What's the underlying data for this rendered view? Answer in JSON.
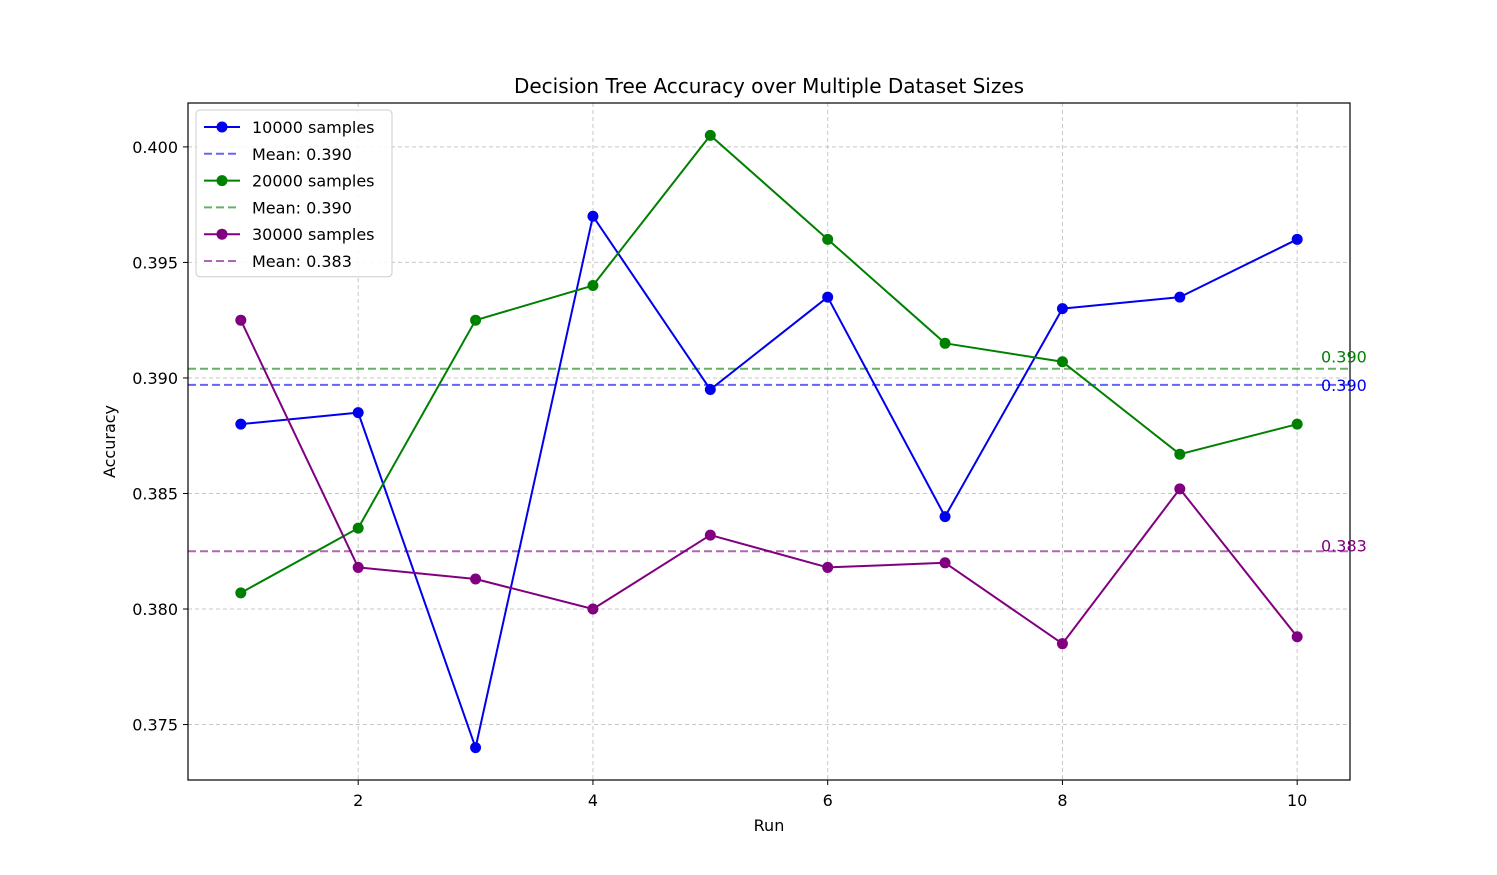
{
  "chart_data": {
    "type": "line",
    "title": "Decision Tree Accuracy over Multiple Dataset Sizes",
    "xlabel": "Run",
    "ylabel": "Accuracy",
    "xlim": [
      0.55,
      10.45
    ],
    "ylim": [
      0.3726,
      0.4019
    ],
    "x": [
      1,
      2,
      3,
      4,
      5,
      6,
      7,
      8,
      9,
      10
    ],
    "xticks": [
      2,
      4,
      6,
      8,
      10
    ],
    "xtick_labels": [
      "2",
      "4",
      "6",
      "8",
      "10"
    ],
    "yticks": [
      0.375,
      0.38,
      0.385,
      0.39,
      0.395,
      0.4
    ],
    "ytick_labels": [
      "0.375",
      "0.380",
      "0.385",
      "0.390",
      "0.395",
      "0.400"
    ],
    "grid": true,
    "legend_position": "top-left",
    "series": [
      {
        "name": "10000 samples",
        "color": "#0000ee",
        "values": [
          0.388,
          0.3885,
          0.374,
          0.397,
          0.3895,
          0.3935,
          0.384,
          0.393,
          0.3935,
          0.396
        ],
        "mean": 0.3897,
        "mean_legend": "Mean: 0.390",
        "mean_label": "0.390"
      },
      {
        "name": "20000 samples",
        "color": "#008000",
        "values": [
          0.3807,
          0.3835,
          0.3925,
          0.394,
          0.4005,
          0.396,
          0.3915,
          0.3907,
          0.3867,
          0.388
        ],
        "mean": 0.3904,
        "mean_legend": "Mean: 0.390",
        "mean_label": "0.390"
      },
      {
        "name": "30000 samples",
        "color": "#800080",
        "values": [
          0.3925,
          0.3818,
          0.3813,
          0.38,
          0.3832,
          0.3818,
          0.382,
          0.3785,
          0.3852,
          0.3788
        ],
        "mean": 0.3825,
        "mean_legend": "Mean: 0.383",
        "mean_label": "0.383"
      }
    ]
  }
}
